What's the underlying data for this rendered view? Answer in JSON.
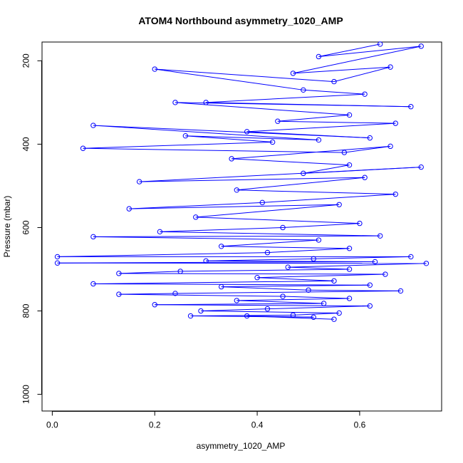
{
  "chart_data": {
    "type": "line",
    "title": "ATOM4 Northbound asymmetry_1020_AMP",
    "xlabel": "asymmetry_1020_AMP",
    "ylabel": "Pressure (mbar)",
    "xlim": [
      -0.02,
      0.76
    ],
    "ylim": [
      1040,
      155
    ],
    "y_reversed": true,
    "x_ticks": [
      0.0,
      0.2,
      0.4,
      0.6
    ],
    "x_tick_labels": [
      "0.0",
      "0.2",
      "0.4",
      "0.6"
    ],
    "y_ticks": [
      200,
      400,
      600,
      800,
      1000
    ],
    "y_tick_labels": [
      "200",
      "400",
      "600",
      "800",
      "1000"
    ],
    "grid": false,
    "series_color": "#0000ff",
    "marker": "open-circle",
    "series": [
      {
        "points": [
          [
            0.64,
            160
          ],
          [
            0.52,
            190
          ],
          [
            0.72,
            165
          ],
          [
            0.47,
            230
          ],
          [
            0.66,
            215
          ],
          [
            0.55,
            250
          ],
          [
            0.2,
            220
          ],
          [
            0.49,
            270
          ],
          [
            0.61,
            280
          ],
          [
            0.3,
            300
          ],
          [
            0.7,
            310
          ],
          [
            0.24,
            300
          ],
          [
            0.58,
            330
          ],
          [
            0.44,
            345
          ],
          [
            0.67,
            350
          ],
          [
            0.38,
            370
          ],
          [
            0.62,
            385
          ],
          [
            0.08,
            355
          ],
          [
            0.52,
            390
          ],
          [
            0.26,
            380
          ],
          [
            0.43,
            395
          ],
          [
            0.06,
            410
          ],
          [
            0.57,
            420
          ],
          [
            0.66,
            405
          ],
          [
            0.35,
            435
          ],
          [
            0.58,
            450
          ],
          [
            0.49,
            470
          ],
          [
            0.72,
            455
          ],
          [
            0.17,
            490
          ],
          [
            0.61,
            480
          ],
          [
            0.36,
            510
          ],
          [
            0.67,
            520
          ],
          [
            0.41,
            540
          ],
          [
            0.15,
            555
          ],
          [
            0.56,
            545
          ],
          [
            0.28,
            575
          ],
          [
            0.6,
            590
          ],
          [
            0.45,
            600
          ],
          [
            0.21,
            610
          ],
          [
            0.64,
            620
          ],
          [
            0.08,
            622
          ],
          [
            0.52,
            630
          ],
          [
            0.33,
            645
          ],
          [
            0.58,
            650
          ],
          [
            0.42,
            660
          ],
          [
            0.01,
            670
          ],
          [
            0.7,
            670
          ],
          [
            0.51,
            675
          ],
          [
            0.3,
            680
          ],
          [
            0.63,
            682
          ],
          [
            0.01,
            685
          ],
          [
            0.73,
            686
          ],
          [
            0.46,
            695
          ],
          [
            0.58,
            700
          ],
          [
            0.25,
            705
          ],
          [
            0.13,
            710
          ],
          [
            0.65,
            712
          ],
          [
            0.4,
            720
          ],
          [
            0.55,
            728
          ],
          [
            0.08,
            735
          ],
          [
            0.62,
            738
          ],
          [
            0.33,
            742
          ],
          [
            0.5,
            750
          ],
          [
            0.68,
            752
          ],
          [
            0.24,
            758
          ],
          [
            0.13,
            760
          ],
          [
            0.45,
            765
          ],
          [
            0.58,
            770
          ],
          [
            0.36,
            775
          ],
          [
            0.53,
            782
          ],
          [
            0.2,
            785
          ],
          [
            0.62,
            788
          ],
          [
            0.42,
            795
          ],
          [
            0.29,
            800
          ],
          [
            0.56,
            805
          ],
          [
            0.47,
            810
          ],
          [
            0.27,
            812
          ],
          [
            0.51,
            815
          ],
          [
            0.38,
            812
          ],
          [
            0.55,
            820
          ]
        ]
      }
    ]
  }
}
